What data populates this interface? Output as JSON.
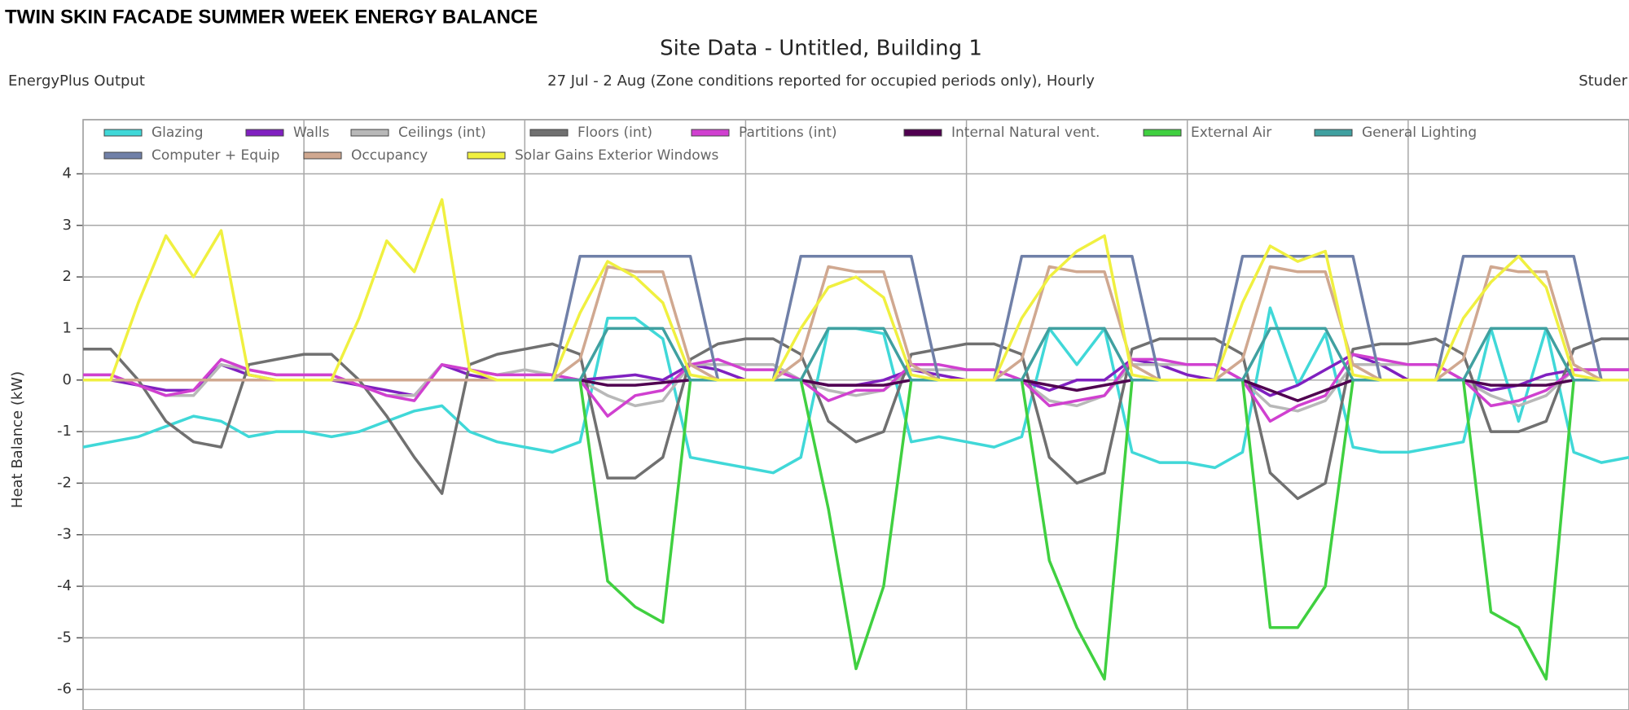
{
  "chart_data": {
    "type": "line",
    "title": "TWIN SKIN FACADE SUMMER WEEK ENERGY BALANCE",
    "heading": "Site Data - Untitled, Building 1",
    "source": "EnergyPlus Output",
    "subtitle": "27 Jul - 2 Aug (Zone conditions reported for occupied periods only), Hourly",
    "corner_text": "Studer",
    "y_label": "Heat Balance (kW)",
    "xlim": [
      0,
      168
    ],
    "xticks": [
      0,
      24,
      48,
      72,
      96,
      120,
      144,
      168
    ],
    "ylim": [
      -6.4,
      5.05
    ],
    "yticks": [
      -6,
      -5,
      -4,
      -3,
      -2,
      -1,
      0,
      1,
      2,
      3,
      4
    ],
    "grid": true,
    "legend": "top",
    "x": [
      0,
      3,
      6,
      9,
      12,
      15,
      18,
      21,
      24,
      27,
      30,
      33,
      36,
      39,
      42,
      45,
      48,
      51,
      54,
      57,
      60,
      63,
      66,
      69,
      72,
      75,
      78,
      81,
      84,
      87,
      90,
      93,
      96,
      99,
      102,
      105,
      108,
      111,
      114,
      117,
      120,
      123,
      126,
      129,
      132,
      135,
      138,
      141,
      144,
      147,
      150,
      153,
      156,
      159,
      162,
      165,
      168
    ],
    "series": [
      {
        "name": "Glazing",
        "color": "#40d8d8",
        "values": [
          -1.3,
          -1.2,
          -1.1,
          -0.9,
          -0.7,
          -0.8,
          -1.1,
          -1.0,
          -1.0,
          -1.1,
          -1.0,
          -0.8,
          -0.6,
          -0.5,
          -1.0,
          -1.2,
          -1.3,
          -1.4,
          -1.2,
          1.2,
          1.2,
          0.8,
          -1.5,
          -1.6,
          -1.7,
          -1.8,
          -1.5,
          1.0,
          1.0,
          0.9,
          -1.2,
          -1.1,
          -1.2,
          -1.3,
          -1.1,
          1.0,
          0.3,
          1.0,
          -1.4,
          -1.6,
          -1.6,
          -1.7,
          -1.4,
          1.4,
          -0.1,
          0.9,
          -1.3,
          -1.4,
          -1.4,
          -1.3,
          -1.2,
          1.0,
          -0.8,
          1.0,
          -1.4,
          -1.6,
          -1.5
        ]
      },
      {
        "name": "Walls",
        "color": "#8020c0",
        "values": [
          0,
          0,
          -0.1,
          -0.2,
          -0.2,
          0.3,
          0.1,
          0,
          0,
          0,
          -0.1,
          -0.2,
          -0.3,
          0.3,
          0.1,
          0,
          0,
          0,
          0,
          0.05,
          0.1,
          0,
          0.3,
          0.2,
          0,
          0,
          0,
          -0.1,
          -0.1,
          0,
          0.2,
          0.1,
          0,
          0,
          0,
          -0.2,
          0,
          0,
          0.4,
          0.3,
          0.1,
          0,
          0,
          -0.3,
          -0.1,
          0.2,
          0.5,
          0.3,
          0,
          0,
          0,
          -0.2,
          -0.1,
          0.1,
          0.2,
          0.2,
          0.2
        ]
      },
      {
        "name": "Ceilings (int)",
        "color": "#b8b8b8",
        "values": [
          0.1,
          0.1,
          -0.1,
          -0.3,
          -0.3,
          0.3,
          0.2,
          0.1,
          0.1,
          0.1,
          -0.1,
          -0.3,
          -0.3,
          0.3,
          0.2,
          0.1,
          0.2,
          0.1,
          0,
          -0.3,
          -0.5,
          -0.4,
          0.3,
          0.3,
          0.3,
          0.3,
          0,
          -0.2,
          -0.3,
          -0.2,
          0.2,
          0.2,
          0.2,
          0.2,
          0,
          -0.4,
          -0.5,
          -0.3,
          0.3,
          0.3,
          0.3,
          0.3,
          0,
          -0.5,
          -0.6,
          -0.4,
          0.3,
          0.3,
          0.3,
          0.3,
          0,
          -0.3,
          -0.5,
          -0.3,
          0.2,
          0.2,
          0.2
        ]
      },
      {
        "name": "Floors (int)",
        "color": "#707070",
        "values": [
          0.6,
          0.6,
          0,
          -0.8,
          -1.2,
          -1.3,
          0.3,
          0.4,
          0.5,
          0.5,
          0,
          -0.7,
          -1.5,
          -2.2,
          0.3,
          0.5,
          0.6,
          0.7,
          0.5,
          -1.9,
          -1.9,
          -1.5,
          0.4,
          0.7,
          0.8,
          0.8,
          0.5,
          -0.8,
          -1.2,
          -1.0,
          0.5,
          0.6,
          0.7,
          0.7,
          0.5,
          -1.5,
          -2.0,
          -1.8,
          0.6,
          0.8,
          0.8,
          0.8,
          0.5,
          -1.8,
          -2.3,
          -2.0,
          0.6,
          0.7,
          0.7,
          0.8,
          0.5,
          -1.0,
          -1.0,
          -0.8,
          0.6,
          0.8,
          0.8
        ]
      },
      {
        "name": "Partitions (int)",
        "color": "#d040d0",
        "values": [
          0.1,
          0.1,
          -0.1,
          -0.3,
          -0.2,
          0.4,
          0.2,
          0.1,
          0.1,
          0.1,
          -0.1,
          -0.3,
          -0.4,
          0.3,
          0.2,
          0.1,
          0.1,
          0.1,
          0,
          -0.7,
          -0.3,
          -0.2,
          0.3,
          0.4,
          0.2,
          0.2,
          0,
          -0.4,
          -0.2,
          -0.2,
          0.3,
          0.3,
          0.2,
          0.2,
          0,
          -0.5,
          -0.4,
          -0.3,
          0.4,
          0.4,
          0.3,
          0.3,
          0,
          -0.8,
          -0.5,
          -0.3,
          0.5,
          0.4,
          0.3,
          0.3,
          0,
          -0.5,
          -0.4,
          -0.2,
          0.2,
          0.2,
          0.2
        ]
      },
      {
        "name": "Internal Natural vent.",
        "color": "#500050",
        "values": [
          0,
          0,
          0,
          0,
          0,
          0,
          0,
          0,
          0,
          0,
          0,
          0,
          0,
          0,
          0,
          0,
          0,
          0,
          0,
          -0.1,
          -0.1,
          -0.05,
          0,
          0,
          0,
          0,
          0,
          -0.1,
          -0.1,
          -0.1,
          0,
          0,
          0,
          0,
          0,
          -0.1,
          -0.2,
          -0.1,
          0,
          0,
          0,
          0,
          0,
          -0.2,
          -0.4,
          -0.2,
          0,
          0,
          0,
          0,
          0,
          -0.1,
          -0.1,
          -0.1,
          0,
          0,
          0
        ]
      },
      {
        "name": "External Air",
        "color": "#40d040",
        "values": [
          0,
          0,
          0,
          0,
          0,
          0,
          0,
          0,
          0,
          0,
          0,
          0,
          0,
          0,
          0,
          0,
          0,
          0,
          0,
          -3.9,
          -4.4,
          -4.7,
          0,
          0,
          0,
          0,
          0,
          -2.5,
          -5.6,
          -4.0,
          0,
          0,
          0,
          0,
          0,
          -3.5,
          -4.8,
          -5.8,
          0,
          0,
          0,
          0,
          0,
          -4.8,
          -4.8,
          -4.0,
          0,
          0,
          0,
          0,
          0,
          -4.5,
          -4.8,
          -5.8,
          0,
          0,
          0
        ]
      },
      {
        "name": "General Lighting",
        "color": "#40a0a0",
        "values": [
          0,
          0,
          0,
          0,
          0,
          0,
          0,
          0,
          0,
          0,
          0,
          0,
          0,
          0,
          0,
          0,
          0,
          0,
          0,
          1,
          1,
          1,
          0,
          0,
          0,
          0,
          0,
          1,
          1,
          1,
          0,
          0,
          0,
          0,
          0,
          1,
          1,
          1,
          0,
          0,
          0,
          0,
          0,
          1,
          1,
          1,
          0,
          0,
          0,
          0,
          0,
          1,
          1,
          1,
          0,
          0,
          0
        ]
      },
      {
        "name": "Computer + Equip",
        "color": "#7080a8",
        "values": [
          0,
          0,
          0,
          0,
          0,
          0,
          0,
          0,
          0,
          0,
          0,
          0,
          0,
          0,
          0,
          0,
          0,
          0,
          2.4,
          2.4,
          2.4,
          2.4,
          2.4,
          0,
          0,
          0,
          2.4,
          2.4,
          2.4,
          2.4,
          2.4,
          0,
          0,
          0,
          2.4,
          2.4,
          2.4,
          2.4,
          2.4,
          0,
          0,
          0,
          2.4,
          2.4,
          2.4,
          2.4,
          2.4,
          0,
          0,
          0,
          2.4,
          2.4,
          2.4,
          2.4,
          2.4,
          0,
          0
        ]
      },
      {
        "name": "Occupancy",
        "color": "#d0a890",
        "values": [
          0,
          0,
          0,
          0,
          0,
          0,
          0,
          0,
          0,
          0,
          0,
          0,
          0,
          0,
          0,
          0,
          0,
          0,
          0.4,
          2.2,
          2.1,
          2.1,
          0.3,
          0,
          0,
          0,
          0.4,
          2.2,
          2.1,
          2.1,
          0.3,
          0,
          0,
          0,
          0.4,
          2.2,
          2.1,
          2.1,
          0.3,
          0,
          0,
          0,
          0.4,
          2.2,
          2.1,
          2.1,
          0.3,
          0,
          0,
          0,
          0.4,
          2.2,
          2.1,
          2.1,
          0.3,
          0,
          0
        ]
      },
      {
        "name": "Solar Gains Exterior Windows",
        "color": "#f0f040",
        "values": [
          0,
          0,
          1.5,
          2.8,
          2.0,
          2.9,
          0.1,
          0,
          0,
          0,
          1.2,
          2.7,
          2.1,
          3.5,
          0.2,
          0,
          0,
          0,
          1.3,
          2.3,
          2.0,
          1.5,
          0.1,
          0,
          0,
          0,
          1.0,
          1.8,
          2.0,
          1.6,
          0.1,
          0,
          0,
          0,
          1.2,
          2.0,
          2.5,
          2.8,
          0.1,
          0,
          0,
          0,
          1.5,
          2.6,
          2.3,
          2.5,
          0.1,
          0,
          0,
          0,
          1.2,
          1.9,
          2.4,
          1.8,
          0.1,
          0,
          0
        ]
      }
    ]
  }
}
